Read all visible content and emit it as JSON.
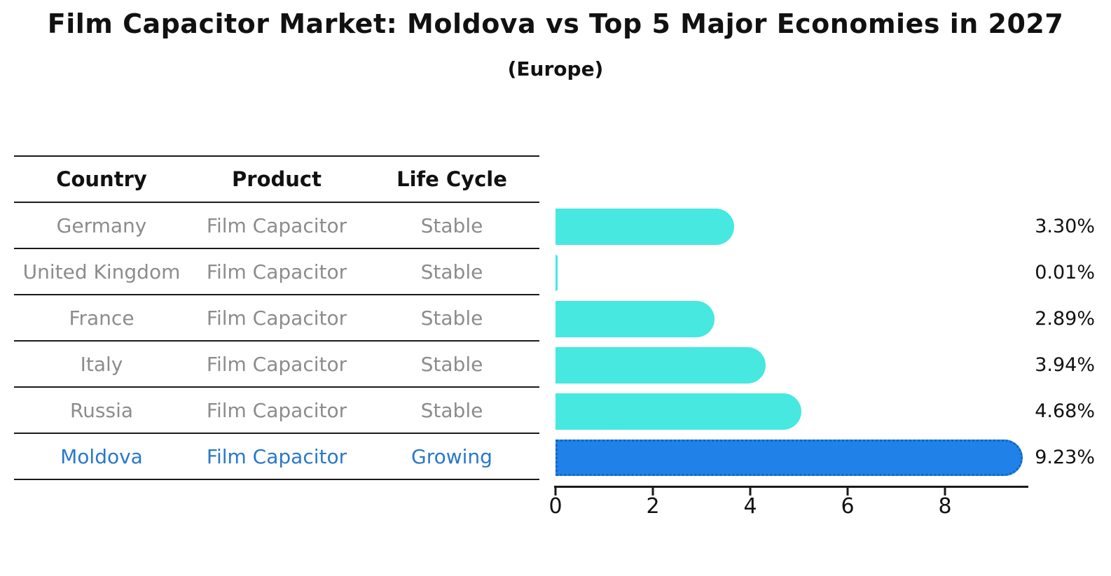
{
  "header": {
    "title": "Film Capacitor Market: Moldova vs Top 5 Major Economies in 2027",
    "subtitle": "(Europe)"
  },
  "table": {
    "columns": [
      "Country",
      "Product",
      "Life Cycle"
    ],
    "rows": [
      {
        "country": "Germany",
        "product": "Film Capacitor",
        "life_cycle": "Stable",
        "highlighted": false
      },
      {
        "country": "United Kingdom",
        "product": "Film Capacitor",
        "life_cycle": "Stable",
        "highlighted": false
      },
      {
        "country": "France",
        "product": "Film Capacitor",
        "life_cycle": "Stable",
        "highlighted": false
      },
      {
        "country": "Italy",
        "product": "Film Capacitor",
        "life_cycle": "Stable",
        "highlighted": false
      },
      {
        "country": "Russia",
        "product": "Film Capacitor",
        "life_cycle": "Stable",
        "highlighted": false
      },
      {
        "country": "Moldova",
        "product": "Film Capacitor",
        "life_cycle": "Growing",
        "highlighted": true
      }
    ]
  },
  "chart_data": {
    "type": "bar",
    "orientation": "horizontal",
    "title": "Film Capacitor Market: Moldova vs Top 5 Major Economies in 2027",
    "subtitle": "(Europe)",
    "categories": [
      "Germany",
      "United Kingdom",
      "France",
      "Italy",
      "Russia",
      "Moldova"
    ],
    "values": [
      3.3,
      0.01,
      2.89,
      3.94,
      4.68,
      9.23
    ],
    "value_labels": [
      "3.30%",
      "0.01%",
      "2.89%",
      "3.94%",
      "4.68%",
      "9.23%"
    ],
    "x_ticks": [
      0,
      2,
      4,
      6,
      8
    ],
    "xlim": [
      0,
      9.55
    ],
    "grid": false,
    "legend": false,
    "bar_color": "#46e8e0",
    "highlight_color": "#2082e8",
    "highlight_border_color": "#1462c6",
    "highlight_index": 5,
    "highlight_text_color": "#2878cc",
    "row_text_color": "#8c8c8c",
    "axis_color": "#1a1a1a"
  }
}
